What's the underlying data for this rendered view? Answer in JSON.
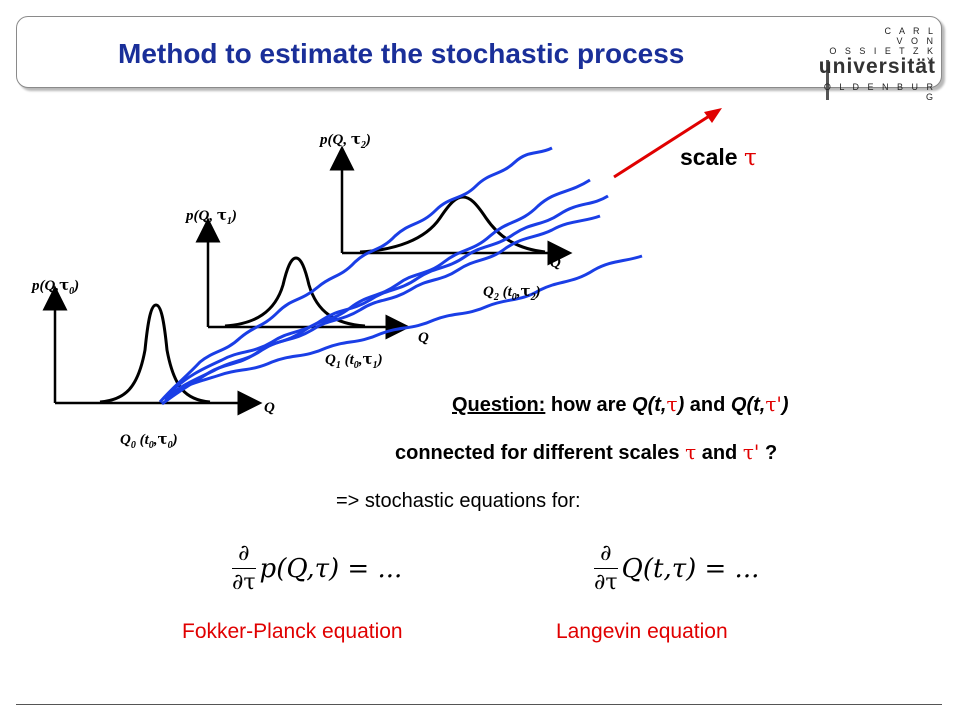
{
  "title": "Method to estimate the stochastic process",
  "logo": {
    "line1": "C A R L",
    "line2": "V O N",
    "line3": "O S S I E T Z K Y",
    "name": "universität",
    "line5": "O L D E N B U R G"
  },
  "diagram": {
    "axes": [
      {
        "ylabel": "p(Q,",
        "ysym": "τ",
        "ysub": "0",
        "yclose": ")",
        "xlabel": "Q",
        "point": "Q",
        "point_sub": "0",
        "point_args": "(t",
        "point_args_sub": "0",
        "point_tau": "τ",
        "point_tau_sub": "0"
      },
      {
        "ylabel": "p(Q, ",
        "ysym": "τ",
        "ysub": "1",
        "yclose": ")",
        "xlabel": "Q",
        "point": "Q",
        "point_sub": "1",
        "point_args": "(t",
        "point_args_sub": "0",
        "point_tau": "τ",
        "point_tau_sub": "1"
      },
      {
        "ylabel": "p(Q, ",
        "ysym": "τ",
        "ysub": "2",
        "yclose": ")",
        "xlabel": "Q",
        "point": "Q",
        "point_sub": "2",
        "point_args": "(t",
        "point_args_sub": "0",
        "point_tau": "τ",
        "point_tau_sub": "2"
      }
    ],
    "scale_label": "scale",
    "scale_symbol": "τ",
    "curve_color": "#1a3ee6",
    "scale_arrow_color": "#e00000"
  },
  "question": {
    "prefix": "Question:",
    "text1": " how are ",
    "q1": "Q(t,",
    "tau": "τ",
    "q1_close": ")",
    "and": " and ",
    "q2": "Q(t,",
    "tau_prime": "τ'",
    "q2_close": ")",
    "line2_text": "connected for different scales ",
    "line2_and": " and ",
    "line2_end": " ?"
  },
  "implication": "=> stochastic equations for:",
  "equations": [
    {
      "num": "∂",
      "den": "∂τ",
      "body": "p(Q,τ) = ...",
      "label": "Fokker-Planck equation"
    },
    {
      "num": "∂",
      "den": "∂τ",
      "body": "Q(t,τ) = ...",
      "label": "Langevin equation"
    }
  ]
}
